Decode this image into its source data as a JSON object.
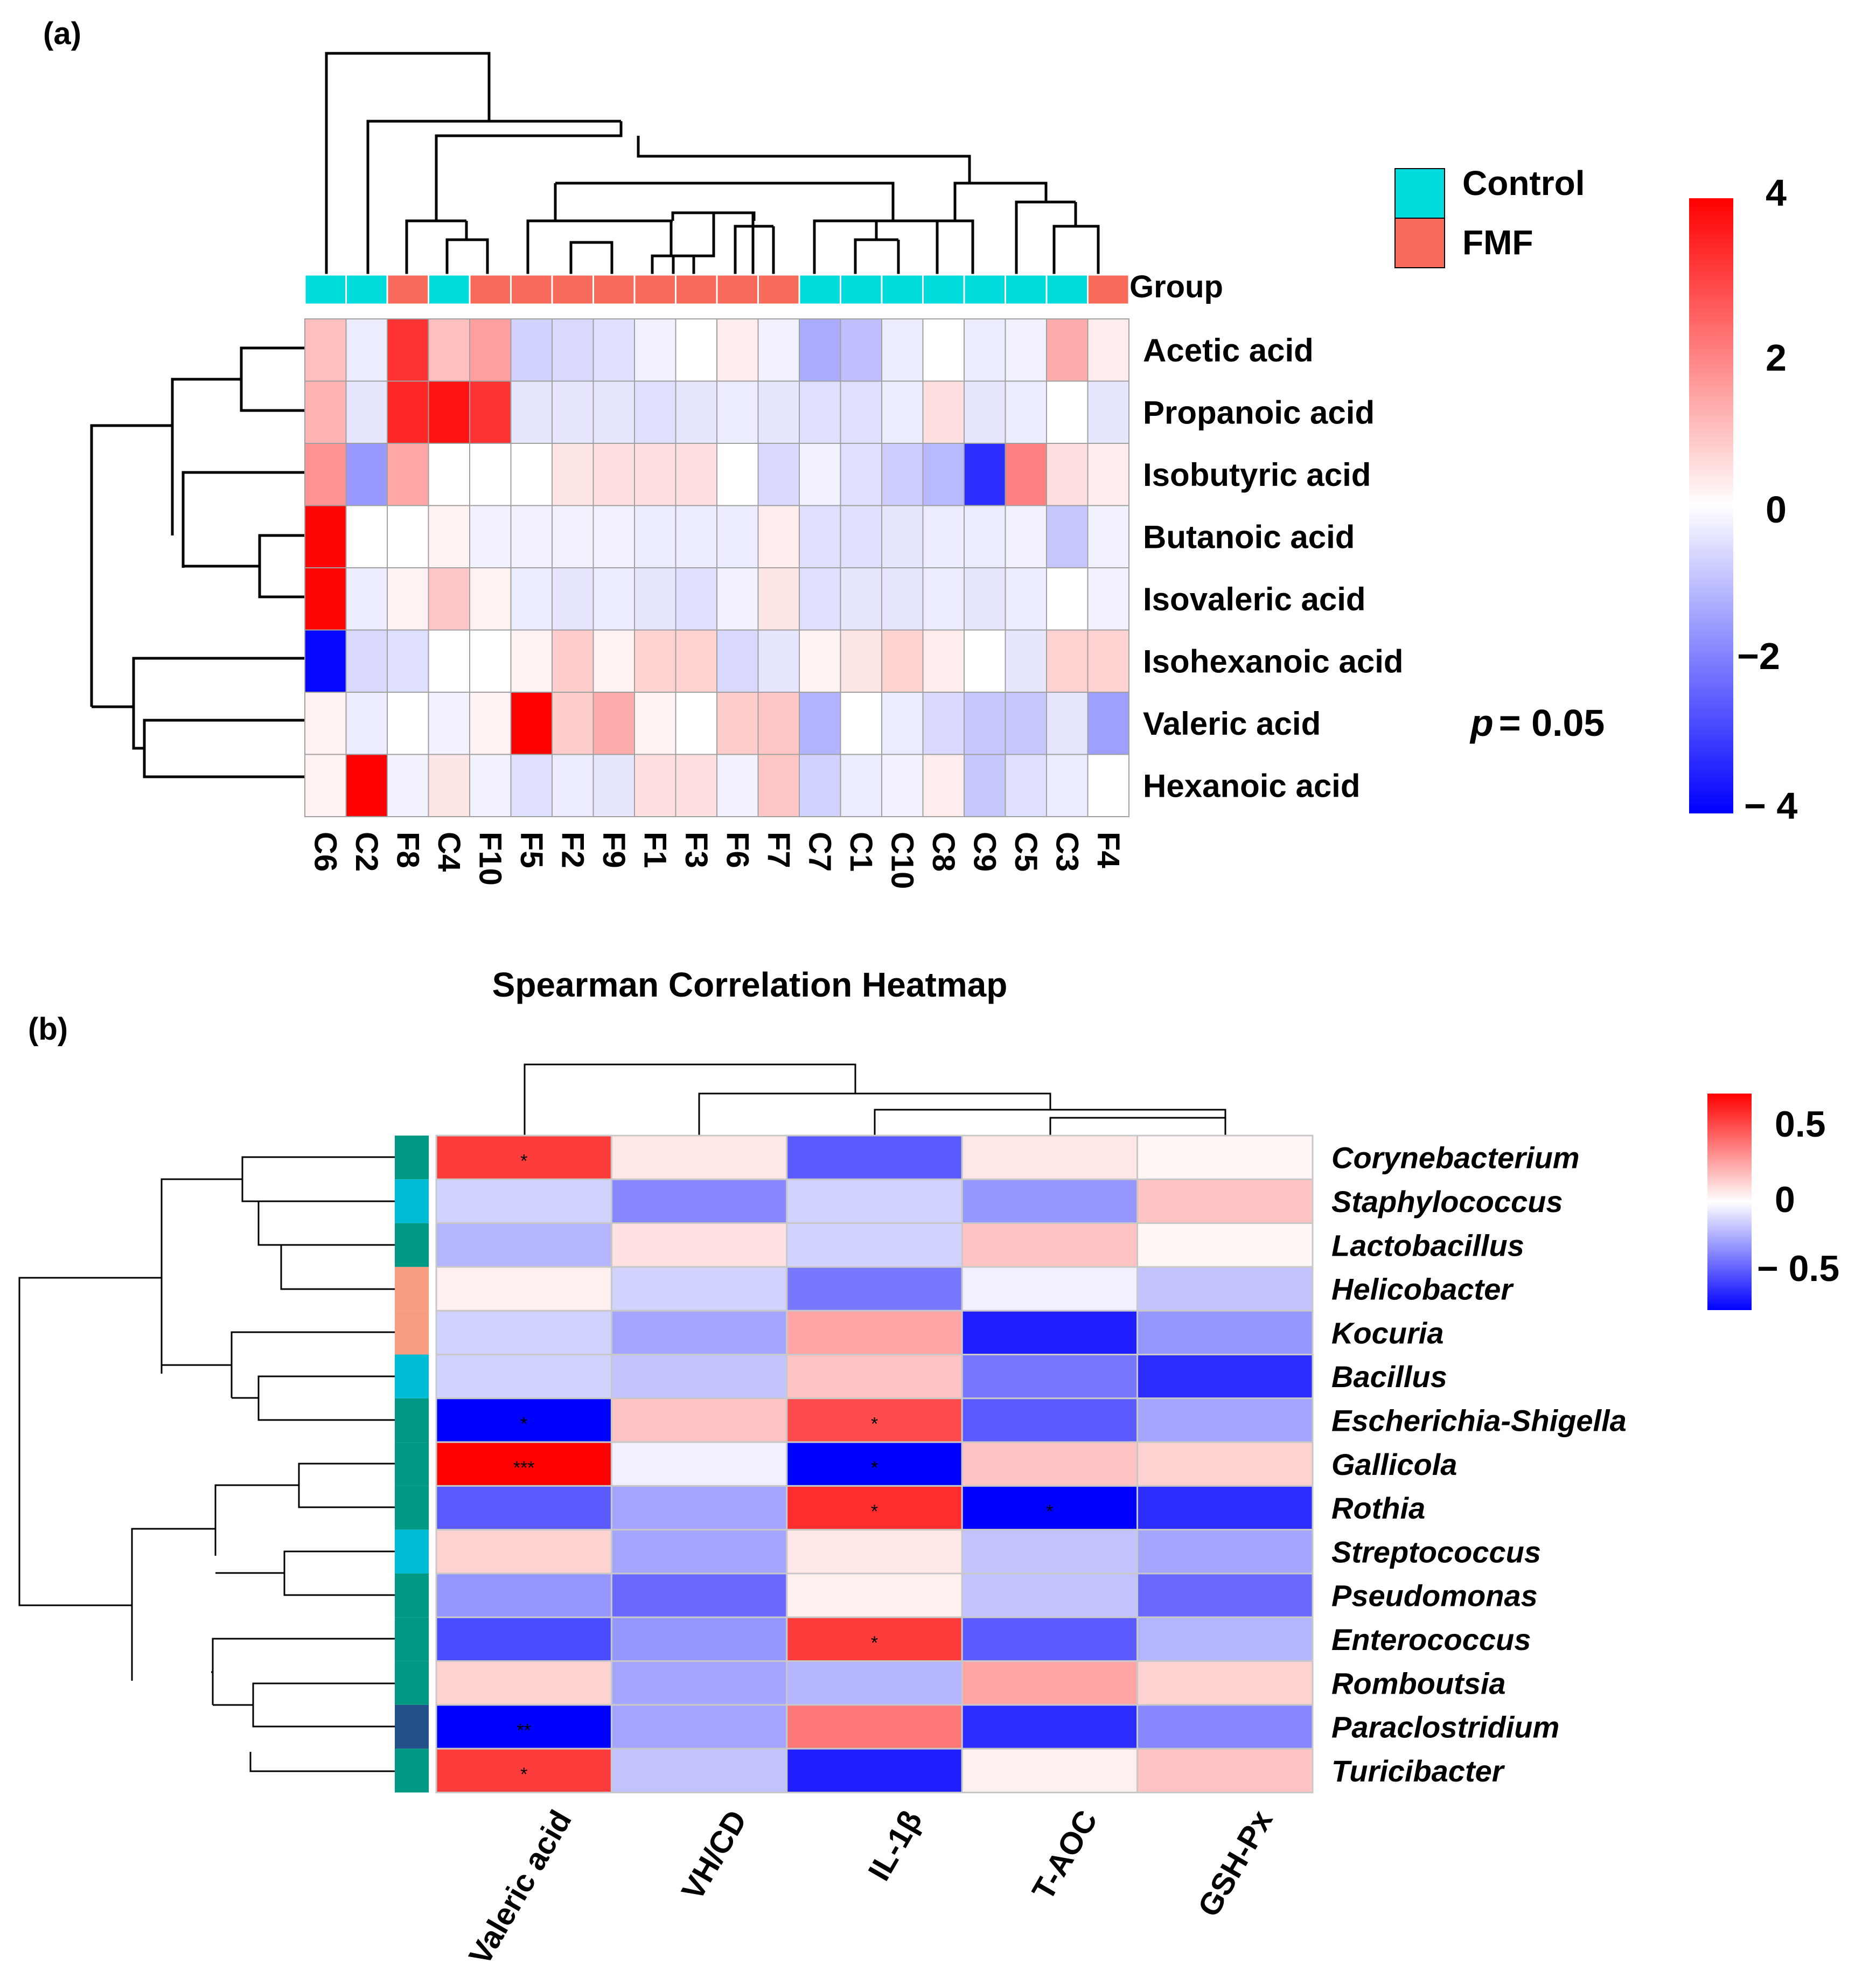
{
  "panel_a": {
    "label": "(a)",
    "group_title": "Group",
    "legend": [
      {
        "name": "Control",
        "color": "#00dcdc"
      },
      {
        "name": "FMF",
        "color": "#f86a5a"
      }
    ],
    "p_text_italic": "p",
    "p_text_value": "= 0.05",
    "colorbar_ticks": [
      "4",
      "2",
      "0",
      "−2",
      "− 4"
    ]
  },
  "panel_b": {
    "label": "(b)",
    "title": "Spearman Correlation Heatmap",
    "colorbar_ticks": [
      "0.5",
      "0",
      "− 0.5"
    ]
  },
  "chart_data": [
    {
      "type": "heatmap",
      "title": "",
      "columns": [
        "C6",
        "C2",
        "F8",
        "C4",
        "F10",
        "F5",
        "F2",
        "F9",
        "F1",
        "F3",
        "F6",
        "F7",
        "C7",
        "C1",
        "C10",
        "C8",
        "C9",
        "C5",
        "C3",
        "F4"
      ],
      "column_groups": [
        "Control",
        "Control",
        "FMF",
        "Control",
        "FMF",
        "FMF",
        "FMF",
        "FMF",
        "FMF",
        "FMF",
        "FMF",
        "FMF",
        "Control",
        "Control",
        "Control",
        "Control",
        "Control",
        "Control",
        "Control",
        "FMF"
      ],
      "rows": [
        "Acetic acid",
        "Propanoic acid",
        "Isobutyric acid",
        "Butanoic acid",
        "Isovaleric acid",
        "Isohexanoic acid",
        "Valeric acid",
        "Hexanoic acid"
      ],
      "values": [
        [
          1.0,
          -0.3,
          3.2,
          1.0,
          1.5,
          -0.7,
          -0.6,
          -0.5,
          -0.2,
          0.0,
          0.3,
          -0.2,
          -1.3,
          -1.0,
          -0.3,
          0.0,
          -0.3,
          -0.2,
          1.3,
          0.3
        ],
        [
          1.2,
          -0.4,
          3.4,
          3.7,
          3.2,
          -0.4,
          -0.4,
          -0.4,
          -0.5,
          -0.4,
          -0.3,
          -0.4,
          -0.5,
          -0.5,
          -0.3,
          0.5,
          -0.4,
          -0.3,
          0.0,
          -0.4
        ],
        [
          1.7,
          -1.6,
          1.4,
          0.0,
          0.0,
          0.0,
          0.4,
          0.5,
          0.5,
          0.5,
          0.0,
          -0.6,
          -0.2,
          -0.5,
          -0.8,
          -1.1,
          -3.3,
          2.0,
          0.5,
          0.3
        ],
        [
          3.9,
          0.0,
          0.0,
          0.2,
          -0.2,
          -0.2,
          -0.2,
          -0.2,
          -0.3,
          -0.3,
          -0.3,
          0.3,
          -0.5,
          -0.5,
          -0.4,
          -0.3,
          -0.3,
          -0.2,
          -0.9,
          -0.2
        ],
        [
          3.9,
          -0.3,
          0.2,
          0.9,
          0.2,
          -0.3,
          -0.4,
          -0.3,
          -0.4,
          -0.5,
          -0.2,
          0.4,
          -0.5,
          -0.4,
          -0.4,
          -0.3,
          -0.4,
          -0.3,
          0.0,
          -0.2
        ],
        [
          -3.9,
          -0.6,
          -0.5,
          0.0,
          0.0,
          0.2,
          0.8,
          0.2,
          0.7,
          0.7,
          -0.6,
          -0.4,
          0.2,
          0.4,
          0.7,
          0.3,
          0.0,
          -0.4,
          0.7,
          0.7
        ],
        [
          0.2,
          -0.3,
          0.0,
          -0.2,
          0.2,
          4.0,
          0.8,
          1.3,
          0.2,
          0.0,
          0.8,
          0.9,
          -1.2,
          0.0,
          -0.3,
          -0.6,
          -0.9,
          -0.9,
          -0.4,
          -1.5
        ],
        [
          0.2,
          4.0,
          -0.2,
          0.4,
          -0.2,
          -0.5,
          -0.3,
          -0.4,
          0.5,
          0.5,
          -0.2,
          0.9,
          -0.7,
          -0.3,
          -0.2,
          0.3,
          -0.9,
          -0.5,
          -0.3,
          0.0
        ]
      ],
      "color_range": [
        -4,
        4
      ],
      "colorbar_ticks": [
        4,
        2,
        0,
        -2,
        -4
      ]
    },
    {
      "type": "heatmap",
      "title": "Spearman Correlation Heatmap",
      "columns": [
        "Valeric acid",
        "VH/CD",
        "IL-1β",
        "T-AOC",
        "GSH-Px"
      ],
      "rows": [
        "Corynebacterium",
        "Staphylococcus",
        "Lactobacillus",
        "Helicobacter",
        "Kocuria",
        "Bacillus",
        "Escherichia-Shigella",
        "Gallicola",
        "Rothia",
        "Streptococcus",
        "Pseudomonas",
        "Enterococcus",
        "Romboutsia",
        "Paraclostridium",
        "Turicibacter"
      ],
      "values": [
        [
          0.65,
          0.08,
          -0.55,
          0.08,
          0.03
        ],
        [
          -0.15,
          -0.4,
          -0.15,
          -0.35,
          0.2
        ],
        [
          -0.25,
          0.1,
          -0.15,
          0.2,
          0.03
        ],
        [
          0.05,
          -0.15,
          -0.45,
          -0.05,
          -0.2
        ],
        [
          -0.15,
          -0.3,
          0.3,
          -0.75,
          -0.35
        ],
        [
          -0.15,
          -0.2,
          0.2,
          -0.45,
          -0.7
        ],
        [
          -0.85,
          0.2,
          0.6,
          -0.55,
          -0.3
        ],
        [
          0.85,
          -0.05,
          -0.85,
          0.2,
          0.15
        ],
        [
          -0.55,
          -0.3,
          0.7,
          -0.85,
          -0.7
        ],
        [
          0.15,
          -0.3,
          0.08,
          -0.2,
          -0.3
        ],
        [
          -0.35,
          -0.5,
          0.05,
          -0.2,
          -0.5
        ],
        [
          -0.6,
          -0.35,
          0.65,
          -0.55,
          -0.25
        ],
        [
          0.15,
          -0.3,
          -0.25,
          0.3,
          0.15
        ],
        [
          -0.85,
          -0.3,
          0.45,
          -0.7,
          -0.4
        ],
        [
          0.65,
          -0.2,
          -0.75,
          0.05,
          0.2
        ]
      ],
      "significance": [
        [
          "*",
          "",
          "",
          "",
          ""
        ],
        [
          "",
          "",
          "",
          "",
          ""
        ],
        [
          "",
          "",
          "",
          "",
          ""
        ],
        [
          "",
          "",
          "",
          "",
          ""
        ],
        [
          "",
          "",
          "",
          "",
          ""
        ],
        [
          "",
          "",
          "",
          "",
          ""
        ],
        [
          "*",
          "",
          "*",
          "",
          ""
        ],
        [
          "***",
          "",
          "*",
          "",
          ""
        ],
        [
          "",
          "",
          "*",
          "*",
          ""
        ],
        [
          "",
          "",
          "",
          "",
          ""
        ],
        [
          "",
          "",
          "",
          "",
          ""
        ],
        [
          "",
          "",
          "*",
          "",
          ""
        ],
        [
          "",
          "",
          "",
          "",
          ""
        ],
        [
          "**",
          "",
          "",
          "",
          ""
        ],
        [
          "*",
          "",
          "",
          "",
          ""
        ]
      ],
      "row_annotation_colors": [
        "#009a84",
        "#00bcd4",
        "#009a84",
        "#f89c82",
        "#f89c82",
        "#00bcd4",
        "#009a84",
        "#009a84",
        "#009a84",
        "#00bcd4",
        "#009a84",
        "#009a84",
        "#009a84",
        "#23508a",
        "#009a84"
      ],
      "color_range": [
        -0.85,
        0.85
      ],
      "colorbar_ticks": [
        0.5,
        0,
        -0.5
      ]
    }
  ]
}
